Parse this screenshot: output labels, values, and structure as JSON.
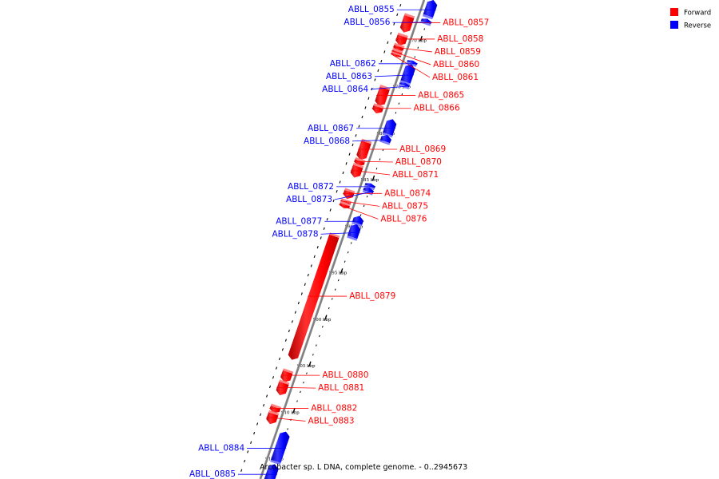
{
  "caption": "Arcobacter sp. L DNA, complete genome. - 0..2945673",
  "legend": [
    {
      "label": "Forward",
      "color": "#ff0000"
    },
    {
      "label": "Reverse",
      "color": "#0000ff"
    }
  ],
  "colors": {
    "forward": "#ff0000",
    "reverse": "#0000ff",
    "backbone": "#808080"
  },
  "view": {
    "start_kbp": 866.2,
    "end_kbp": 917.7
  },
  "tick_labels": [
    "870 kbp",
    "875 kbp",
    "880 kbp",
    "885 kbp",
    "890 kbp",
    "895 kbp",
    "900 kbp",
    "905 kbp",
    "910 kbp",
    "915 kbp"
  ],
  "genes": [
    {
      "id": "ABLL_0855",
      "strand": "reverse",
      "start_kbp": 865.9,
      "end_kbp": 867.6
    },
    {
      "id": "ABLL_0856",
      "strand": "reverse",
      "start_kbp": 867.9,
      "end_kbp": 868.3
    },
    {
      "id": "ABLL_0857",
      "strand": "forward",
      "start_kbp": 868.3,
      "end_kbp": 870.0
    },
    {
      "id": "ABLL_0858",
      "strand": "forward",
      "start_kbp": 870.4,
      "end_kbp": 871.4
    },
    {
      "id": "ABLL_0859",
      "strand": "forward",
      "start_kbp": 871.5,
      "end_kbp": 872.0
    },
    {
      "id": "ABLL_0860",
      "strand": "forward",
      "start_kbp": 872.05,
      "end_kbp": 872.3
    },
    {
      "id": "ABLL_0861",
      "strand": "forward",
      "start_kbp": 872.35,
      "end_kbp": 872.6
    },
    {
      "id": "ABLL_0862",
      "strand": "reverse",
      "start_kbp": 872.4,
      "end_kbp": 872.7
    },
    {
      "id": "ABLL_0863",
      "strand": "reverse",
      "start_kbp": 872.8,
      "end_kbp": 874.7
    },
    {
      "id": "ABLL_0864",
      "strand": "reverse",
      "start_kbp": 874.8,
      "end_kbp": 875.1
    },
    {
      "id": "ABLL_0865",
      "strand": "forward",
      "start_kbp": 876.0,
      "end_kbp": 877.9
    },
    {
      "id": "ABLL_0866",
      "strand": "forward",
      "start_kbp": 878.0,
      "end_kbp": 878.7
    },
    {
      "id": "ABLL_0867",
      "strand": "reverse",
      "start_kbp": 878.7,
      "end_kbp": 880.3
    },
    {
      "id": "ABLL_0868",
      "strand": "reverse",
      "start_kbp": 880.4,
      "end_kbp": 881.1
    },
    {
      "id": "ABLL_0869",
      "strand": "forward",
      "start_kbp": 881.8,
      "end_kbp": 883.7
    },
    {
      "id": "ABLL_0870",
      "strand": "forward",
      "start_kbp": 883.8,
      "end_kbp": 884.3
    },
    {
      "id": "ABLL_0871",
      "strand": "forward",
      "start_kbp": 884.4,
      "end_kbp": 885.6
    },
    {
      "id": "ABLL_0872",
      "strand": "reverse",
      "start_kbp": 885.6,
      "end_kbp": 885.95
    },
    {
      "id": "ABLL_0873",
      "strand": "reverse",
      "start_kbp": 886.05,
      "end_kbp": 886.5
    },
    {
      "id": "ABLL_0874",
      "strand": "forward",
      "start_kbp": 887.1,
      "end_kbp": 887.9
    },
    {
      "id": "ABLL_0875",
      "strand": "forward",
      "start_kbp": 888.2,
      "end_kbp": 888.4
    },
    {
      "id": "ABLL_0876",
      "strand": "forward",
      "start_kbp": 888.5,
      "end_kbp": 888.9
    },
    {
      "id": "ABLL_0877",
      "strand": "reverse",
      "start_kbp": 889.1,
      "end_kbp": 889.9
    },
    {
      "id": "ABLL_0878",
      "strand": "reverse",
      "start_kbp": 890.0,
      "end_kbp": 891.4
    },
    {
      "id": "ABLL_0879",
      "strand": "forward",
      "start_kbp": 891.9,
      "end_kbp": 905.2
    },
    {
      "id": "ABLL_0880",
      "strand": "forward",
      "start_kbp": 906.5,
      "end_kbp": 907.6
    },
    {
      "id": "ABLL_0881",
      "strand": "forward",
      "start_kbp": 907.7,
      "end_kbp": 909.0
    },
    {
      "id": "ABLL_0882",
      "strand": "forward",
      "start_kbp": 910.3,
      "end_kbp": 910.9
    },
    {
      "id": "ABLL_0883",
      "strand": "forward",
      "start_kbp": 911.0,
      "end_kbp": 912.1
    },
    {
      "id": "ABLL_0884",
      "strand": "reverse",
      "start_kbp": 912.3,
      "end_kbp": 915.5
    },
    {
      "id": "ABLL_0885",
      "strand": "reverse",
      "start_kbp": 915.8,
      "end_kbp": 917.6
    }
  ]
}
